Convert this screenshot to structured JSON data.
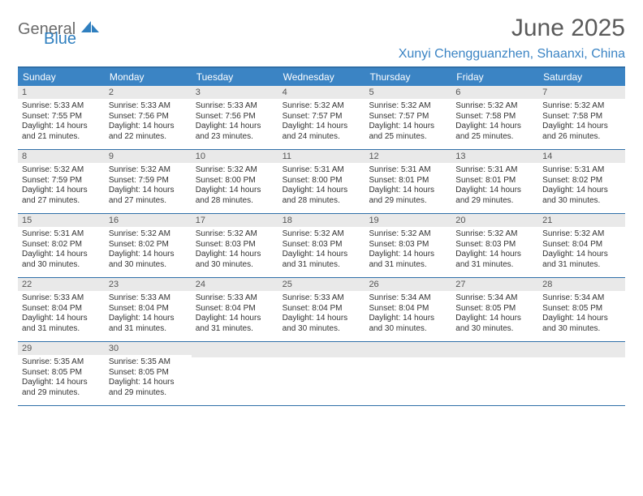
{
  "logo": {
    "general": "General",
    "blue": "Blue"
  },
  "title": "June 2025",
  "location": "Xunyi Chengguanzhen, Shaanxi, China",
  "colors": {
    "header_bar": "#3b84c4",
    "border": "#2f6fa8",
    "daynum_bg": "#e9e9e9",
    "title_color": "#5a5a5a",
    "location_color": "#3b84c4",
    "logo_gray": "#6b6b6b",
    "logo_blue": "#2f7fbf"
  },
  "day_names": [
    "Sunday",
    "Monday",
    "Tuesday",
    "Wednesday",
    "Thursday",
    "Friday",
    "Saturday"
  ],
  "weeks": [
    [
      {
        "n": "1",
        "sr": "5:33 AM",
        "ss": "7:55 PM",
        "dh": "14",
        "dm": "21"
      },
      {
        "n": "2",
        "sr": "5:33 AM",
        "ss": "7:56 PM",
        "dh": "14",
        "dm": "22"
      },
      {
        "n": "3",
        "sr": "5:33 AM",
        "ss": "7:56 PM",
        "dh": "14",
        "dm": "23"
      },
      {
        "n": "4",
        "sr": "5:32 AM",
        "ss": "7:57 PM",
        "dh": "14",
        "dm": "24"
      },
      {
        "n": "5",
        "sr": "5:32 AM",
        "ss": "7:57 PM",
        "dh": "14",
        "dm": "25"
      },
      {
        "n": "6",
        "sr": "5:32 AM",
        "ss": "7:58 PM",
        "dh": "14",
        "dm": "25"
      },
      {
        "n": "7",
        "sr": "5:32 AM",
        "ss": "7:58 PM",
        "dh": "14",
        "dm": "26"
      }
    ],
    [
      {
        "n": "8",
        "sr": "5:32 AM",
        "ss": "7:59 PM",
        "dh": "14",
        "dm": "27"
      },
      {
        "n": "9",
        "sr": "5:32 AM",
        "ss": "7:59 PM",
        "dh": "14",
        "dm": "27"
      },
      {
        "n": "10",
        "sr": "5:32 AM",
        "ss": "8:00 PM",
        "dh": "14",
        "dm": "28"
      },
      {
        "n": "11",
        "sr": "5:31 AM",
        "ss": "8:00 PM",
        "dh": "14",
        "dm": "28"
      },
      {
        "n": "12",
        "sr": "5:31 AM",
        "ss": "8:01 PM",
        "dh": "14",
        "dm": "29"
      },
      {
        "n": "13",
        "sr": "5:31 AM",
        "ss": "8:01 PM",
        "dh": "14",
        "dm": "29"
      },
      {
        "n": "14",
        "sr": "5:31 AM",
        "ss": "8:02 PM",
        "dh": "14",
        "dm": "30"
      }
    ],
    [
      {
        "n": "15",
        "sr": "5:31 AM",
        "ss": "8:02 PM",
        "dh": "14",
        "dm": "30"
      },
      {
        "n": "16",
        "sr": "5:32 AM",
        "ss": "8:02 PM",
        "dh": "14",
        "dm": "30"
      },
      {
        "n": "17",
        "sr": "5:32 AM",
        "ss": "8:03 PM",
        "dh": "14",
        "dm": "30"
      },
      {
        "n": "18",
        "sr": "5:32 AM",
        "ss": "8:03 PM",
        "dh": "14",
        "dm": "31"
      },
      {
        "n": "19",
        "sr": "5:32 AM",
        "ss": "8:03 PM",
        "dh": "14",
        "dm": "31"
      },
      {
        "n": "20",
        "sr": "5:32 AM",
        "ss": "8:03 PM",
        "dh": "14",
        "dm": "31"
      },
      {
        "n": "21",
        "sr": "5:32 AM",
        "ss": "8:04 PM",
        "dh": "14",
        "dm": "31"
      }
    ],
    [
      {
        "n": "22",
        "sr": "5:33 AM",
        "ss": "8:04 PM",
        "dh": "14",
        "dm": "31"
      },
      {
        "n": "23",
        "sr": "5:33 AM",
        "ss": "8:04 PM",
        "dh": "14",
        "dm": "31"
      },
      {
        "n": "24",
        "sr": "5:33 AM",
        "ss": "8:04 PM",
        "dh": "14",
        "dm": "31"
      },
      {
        "n": "25",
        "sr": "5:33 AM",
        "ss": "8:04 PM",
        "dh": "14",
        "dm": "30"
      },
      {
        "n": "26",
        "sr": "5:34 AM",
        "ss": "8:04 PM",
        "dh": "14",
        "dm": "30"
      },
      {
        "n": "27",
        "sr": "5:34 AM",
        "ss": "8:05 PM",
        "dh": "14",
        "dm": "30"
      },
      {
        "n": "28",
        "sr": "5:34 AM",
        "ss": "8:05 PM",
        "dh": "14",
        "dm": "30"
      }
    ],
    [
      {
        "n": "29",
        "sr": "5:35 AM",
        "ss": "8:05 PM",
        "dh": "14",
        "dm": "29"
      },
      {
        "n": "30",
        "sr": "5:35 AM",
        "ss": "8:05 PM",
        "dh": "14",
        "dm": "29"
      },
      null,
      null,
      null,
      null,
      null
    ]
  ],
  "labels": {
    "sunrise": "Sunrise:",
    "sunset": "Sunset:",
    "daylight": "Daylight:",
    "hours": "hours",
    "and": "and",
    "minutes": "minutes."
  }
}
